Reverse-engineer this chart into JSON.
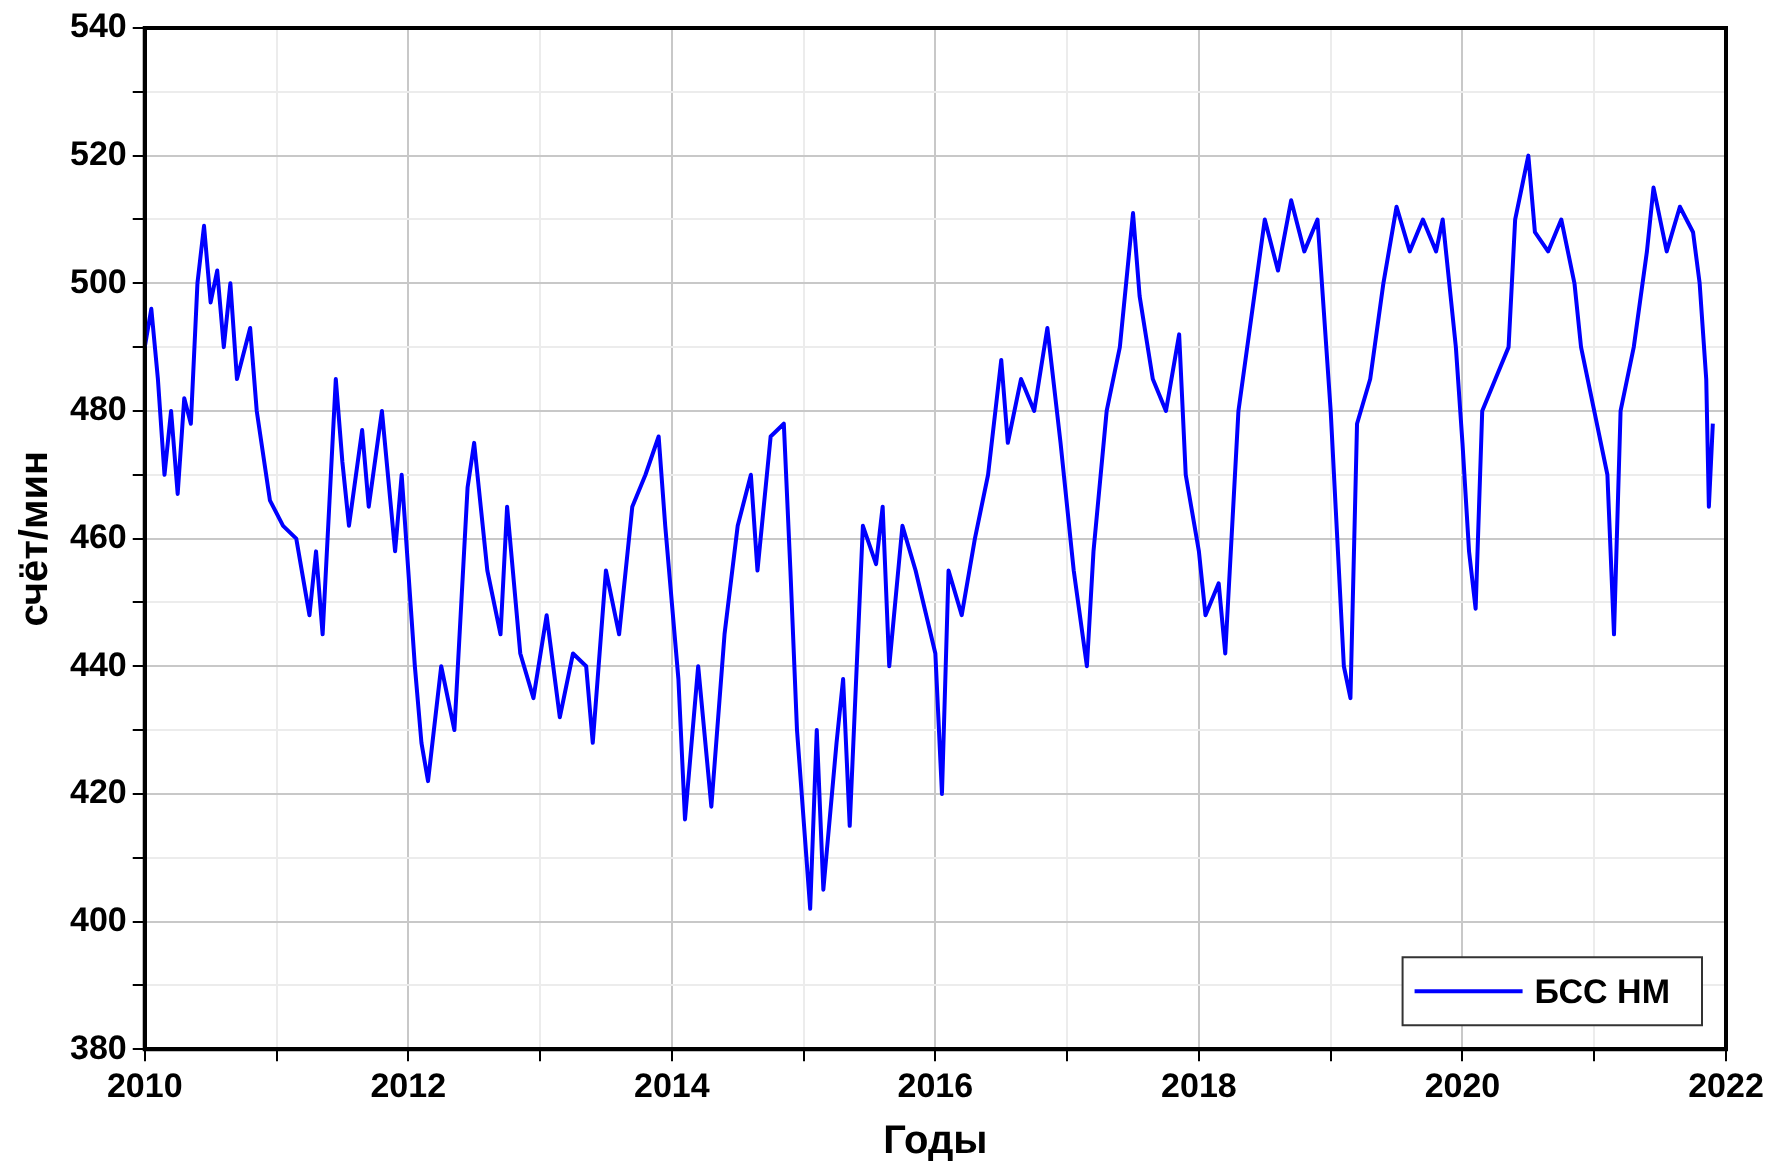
{
  "chart_data": {
    "type": "line",
    "xlabel": "Годы",
    "ylabel": "счёт/мин",
    "xlim": [
      2010,
      2022
    ],
    "ylim": [
      380,
      540
    ],
    "xticks": [
      2010,
      {
        "value": 2011,
        "label": null
      },
      2012,
      {
        "value": 2013,
        "label": null
      },
      2014,
      {
        "value": 2015,
        "label": null
      },
      2016,
      {
        "value": 2017,
        "label": null
      },
      2018,
      {
        "value": 2019,
        "label": null
      },
      2020,
      {
        "value": 2021,
        "label": null
      },
      2022
    ],
    "yticks": [
      380,
      {
        "value": 390,
        "label": null
      },
      400,
      {
        "value": 410,
        "label": null
      },
      420,
      {
        "value": 430,
        "label": null
      },
      440,
      {
        "value": 450,
        "label": null
      },
      460,
      {
        "value": 470,
        "label": null
      },
      480,
      {
        "value": 490,
        "label": null
      },
      500,
      {
        "value": 510,
        "label": null
      },
      520,
      {
        "value": 530,
        "label": null
      },
      540
    ],
    "grid": true,
    "legend": "bottom right",
    "marker": "none",
    "line_style": "solid",
    "x": [
      2010.0,
      2010.05,
      2010.1,
      2010.15,
      2010.2,
      2010.25,
      2010.3,
      2010.35,
      2010.4,
      2010.45,
      2010.5,
      2010.55,
      2010.6,
      2010.65,
      2010.7,
      2010.8,
      2010.85,
      2010.95,
      2011.05,
      2011.15,
      2011.25,
      2011.3,
      2011.35,
      2011.45,
      2011.5,
      2011.55,
      2011.65,
      2011.7,
      2011.8,
      2011.9,
      2011.95,
      2012.05,
      2012.1,
      2012.15,
      2012.25,
      2012.35,
      2012.45,
      2012.5,
      2012.6,
      2012.7,
      2012.75,
      2012.85,
      2012.95,
      2013.05,
      2013.15,
      2013.25,
      2013.35,
      2013.4,
      2013.5,
      2013.6,
      2013.7,
      2013.8,
      2013.9,
      2013.95,
      2014.05,
      2014.1,
      2014.2,
      2014.3,
      2014.4,
      2014.5,
      2014.6,
      2014.65,
      2014.75,
      2014.85,
      2014.9,
      2014.95,
      2015.05,
      2015.1,
      2015.15,
      2015.25,
      2015.3,
      2015.35,
      2015.45,
      2015.55,
      2015.6,
      2015.65,
      2015.75,
      2015.85,
      2016.0,
      2016.05,
      2016.1,
      2016.2,
      2016.3,
      2016.4,
      2016.5,
      2016.55,
      2016.65,
      2016.75,
      2016.85,
      2016.95,
      2017.05,
      2017.15,
      2017.2,
      2017.3,
      2017.4,
      2017.5,
      2017.55,
      2017.65,
      2017.75,
      2017.85,
      2017.9,
      2018.0,
      2018.05,
      2018.15,
      2018.2,
      2018.3,
      2018.4,
      2018.5,
      2018.6,
      2018.7,
      2018.8,
      2018.9,
      2018.95,
      2019.0,
      2019.1,
      2019.15,
      2019.2,
      2019.3,
      2019.4,
      2019.5,
      2019.6,
      2019.7,
      2019.8,
      2019.85,
      2019.95,
      2020.0,
      2020.05,
      2020.1,
      2020.15,
      2020.25,
      2020.35,
      2020.4,
      2020.5,
      2020.55,
      2020.65,
      2020.75,
      2020.85,
      2020.9,
      2021.0,
      2021.1,
      2021.15,
      2021.2,
      2021.3,
      2021.4,
      2021.45,
      2021.55,
      2021.65,
      2021.75,
      2021.8,
      2021.85,
      2021.87,
      2021.9
    ],
    "series": [
      {
        "name": "БСС НМ",
        "color": "#0000ff",
        "values": [
          490,
          496,
          485,
          470,
          480,
          467,
          482,
          478,
          500,
          509,
          497,
          502,
          490,
          500,
          485,
          493,
          480,
          466,
          462,
          460,
          448,
          458,
          445,
          485,
          472,
          462,
          477,
          465,
          480,
          458,
          470,
          440,
          428,
          422,
          440,
          430,
          468,
          475,
          455,
          445,
          465,
          442,
          435,
          448,
          432,
          442,
          440,
          428,
          455,
          445,
          465,
          470,
          476,
          462,
          438,
          416,
          440,
          418,
          445,
          462,
          470,
          455,
          476,
          478,
          455,
          430,
          402,
          430,
          405,
          428,
          438,
          415,
          462,
          456,
          465,
          440,
          462,
          455,
          442,
          420,
          455,
          448,
          460,
          470,
          488,
          475,
          485,
          480,
          493,
          475,
          455,
          440,
          458,
          480,
          490,
          511,
          498,
          485,
          480,
          492,
          470,
          458,
          448,
          453,
          442,
          480,
          495,
          510,
          502,
          513,
          505,
          510,
          495,
          480,
          440,
          435,
          478,
          485,
          500,
          512,
          505,
          510,
          505,
          510,
          490,
          475,
          458,
          449,
          480,
          485,
          490,
          510,
          520,
          508,
          505,
          510,
          500,
          490,
          480,
          470,
          445,
          480,
          490,
          505,
          515,
          505,
          512,
          508,
          500,
          485,
          465,
          478
        ]
      }
    ]
  }
}
